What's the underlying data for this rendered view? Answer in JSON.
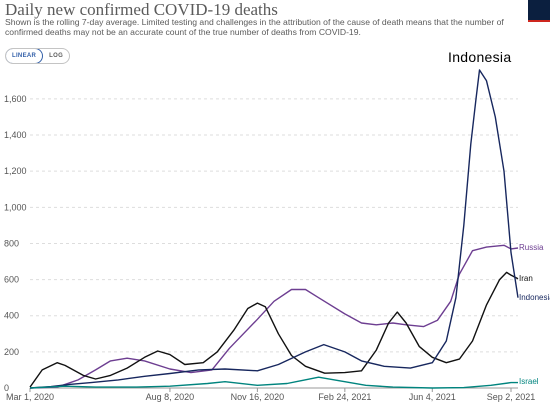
{
  "header": {
    "title": "Daily new confirmed COVID-19 deaths",
    "subtitle": "Shown is the rolling 7-day average. Limited testing and challenges in the attribution of the cause of death means that the number of confirmed deaths may not be an accurate count of the true number of deaths from COVID-19.",
    "logo_icon": "owid-logo-icon"
  },
  "controls": {
    "linear_label": "LINEAR",
    "log_label": "LOG",
    "selected": "LINEAR"
  },
  "overlay_label": "Indonesia",
  "chart_data": {
    "type": "line",
    "title": "Daily new confirmed COVID-19 deaths",
    "ylim": [
      0,
      1760
    ],
    "yticks": [
      0,
      200,
      400,
      600,
      800,
      1000,
      1200,
      1400,
      1600
    ],
    "ytick_labels": [
      "0",
      "200",
      "400",
      "600",
      "800",
      "1,000",
      "1,200",
      "1,400",
      "1,600"
    ],
    "xlim": [
      "2020-03-01",
      "2021-09-10"
    ],
    "xticks": [
      "2020-03-01",
      "2020-08-08",
      "2020-11-16",
      "2021-02-24",
      "2021-06-04",
      "2021-09-02"
    ],
    "xtick_labels": [
      "Mar 1, 2020",
      "Aug 8, 2020",
      "Nov 16, 2020",
      "Feb 24, 2021",
      "Jun 4, 2021",
      "Sep 2, 2021"
    ],
    "grid": "horizontal dashed",
    "legend": "line-end labels",
    "series": [
      {
        "name": "Russia",
        "color": "#6d3e91",
        "points": [
          [
            "2020-03-01",
            0
          ],
          [
            "2020-04-01",
            5
          ],
          [
            "2020-04-25",
            45
          ],
          [
            "2020-05-15",
            100
          ],
          [
            "2020-06-01",
            150
          ],
          [
            "2020-06-20",
            165
          ],
          [
            "2020-07-10",
            150
          ],
          [
            "2020-08-08",
            105
          ],
          [
            "2020-09-01",
            85
          ],
          [
            "2020-09-25",
            100
          ],
          [
            "2020-10-15",
            220
          ],
          [
            "2020-11-16",
            380
          ],
          [
            "2020-12-05",
            480
          ],
          [
            "2020-12-25",
            545
          ],
          [
            "2021-01-10",
            545
          ],
          [
            "2021-01-25",
            500
          ],
          [
            "2021-02-24",
            410
          ],
          [
            "2021-03-15",
            360
          ],
          [
            "2021-04-01",
            350
          ],
          [
            "2021-04-20",
            360
          ],
          [
            "2021-05-05",
            350
          ],
          [
            "2021-05-25",
            340
          ],
          [
            "2021-06-10",
            375
          ],
          [
            "2021-06-25",
            480
          ],
          [
            "2021-07-05",
            630
          ],
          [
            "2021-07-20",
            760
          ],
          [
            "2021-08-05",
            780
          ],
          [
            "2021-08-25",
            790
          ],
          [
            "2021-09-02",
            770
          ],
          [
            "2021-09-10",
            775
          ]
        ]
      },
      {
        "name": "Iran",
        "color": "#111111",
        "points": [
          [
            "2020-03-01",
            5
          ],
          [
            "2020-03-15",
            100
          ],
          [
            "2020-04-01",
            140
          ],
          [
            "2020-04-10",
            125
          ],
          [
            "2020-05-01",
            70
          ],
          [
            "2020-05-15",
            50
          ],
          [
            "2020-06-01",
            70
          ],
          [
            "2020-06-20",
            110
          ],
          [
            "2020-07-10",
            170
          ],
          [
            "2020-07-25",
            205
          ],
          [
            "2020-08-08",
            185
          ],
          [
            "2020-08-25",
            130
          ],
          [
            "2020-09-15",
            140
          ],
          [
            "2020-10-01",
            200
          ],
          [
            "2020-10-20",
            320
          ],
          [
            "2020-11-05",
            440
          ],
          [
            "2020-11-16",
            470
          ],
          [
            "2020-11-25",
            450
          ],
          [
            "2020-12-10",
            300
          ],
          [
            "2020-12-25",
            180
          ],
          [
            "2021-01-10",
            120
          ],
          [
            "2021-02-01",
            82
          ],
          [
            "2021-02-24",
            85
          ],
          [
            "2021-03-15",
            95
          ],
          [
            "2021-04-01",
            210
          ],
          [
            "2021-04-15",
            360
          ],
          [
            "2021-04-25",
            420
          ],
          [
            "2021-05-05",
            360
          ],
          [
            "2021-05-20",
            230
          ],
          [
            "2021-06-04",
            170
          ],
          [
            "2021-06-20",
            140
          ],
          [
            "2021-07-05",
            160
          ],
          [
            "2021-07-20",
            260
          ],
          [
            "2021-08-05",
            460
          ],
          [
            "2021-08-20",
            600
          ],
          [
            "2021-08-28",
            640
          ],
          [
            "2021-09-02",
            625
          ],
          [
            "2021-09-10",
            605
          ]
        ]
      },
      {
        "name": "Indonesia",
        "color": "#17275e",
        "points": [
          [
            "2020-03-01",
            0
          ],
          [
            "2020-03-25",
            8
          ],
          [
            "2020-04-15",
            20
          ],
          [
            "2020-05-10",
            30
          ],
          [
            "2020-06-10",
            45
          ],
          [
            "2020-07-10",
            65
          ],
          [
            "2020-08-08",
            80
          ],
          [
            "2020-09-10",
            100
          ],
          [
            "2020-10-10",
            105
          ],
          [
            "2020-11-16",
            95
          ],
          [
            "2020-12-10",
            130
          ],
          [
            "2021-01-10",
            200
          ],
          [
            "2021-01-31",
            240
          ],
          [
            "2021-02-24",
            200
          ],
          [
            "2021-03-15",
            150
          ],
          [
            "2021-04-10",
            120
          ],
          [
            "2021-05-10",
            110
          ],
          [
            "2021-06-04",
            140
          ],
          [
            "2021-06-20",
            260
          ],
          [
            "2021-07-01",
            500
          ],
          [
            "2021-07-10",
            900
          ],
          [
            "2021-07-18",
            1350
          ],
          [
            "2021-07-24",
            1600
          ],
          [
            "2021-07-28",
            1760
          ],
          [
            "2021-08-05",
            1700
          ],
          [
            "2021-08-15",
            1500
          ],
          [
            "2021-08-25",
            1200
          ],
          [
            "2021-09-02",
            750
          ],
          [
            "2021-09-10",
            500
          ]
        ]
      },
      {
        "name": "Israel",
        "color": "#00847e",
        "points": [
          [
            "2020-03-01",
            0
          ],
          [
            "2020-04-10",
            10
          ],
          [
            "2020-05-15",
            5
          ],
          [
            "2020-07-01",
            5
          ],
          [
            "2020-08-08",
            10
          ],
          [
            "2020-09-20",
            25
          ],
          [
            "2020-10-10",
            35
          ],
          [
            "2020-11-16",
            15
          ],
          [
            "2020-12-20",
            25
          ],
          [
            "2021-01-25",
            60
          ],
          [
            "2021-02-24",
            35
          ],
          [
            "2021-03-20",
            15
          ],
          [
            "2021-04-20",
            5
          ],
          [
            "2021-06-04",
            0
          ],
          [
            "2021-07-10",
            2
          ],
          [
            "2021-08-10",
            15
          ],
          [
            "2021-09-02",
            30
          ],
          [
            "2021-09-10",
            30
          ]
        ]
      }
    ]
  }
}
